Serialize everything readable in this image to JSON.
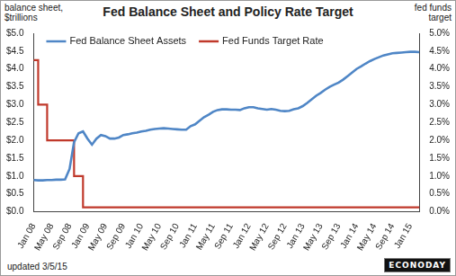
{
  "chart_data": {
    "type": "line",
    "title": "Fed Balance Sheet and Policy Rate Target",
    "ylabel": "balance sheet,\n$trillions",
    "y2label": "fed funds\ntarget",
    "annotations": [
      "updated 3/5/15",
      "ECONODAY"
    ],
    "categories": [
      "Jan 08",
      null,
      null,
      null,
      "May 08",
      null,
      null,
      null,
      "Sep 08",
      null,
      null,
      null,
      "Jan 09",
      null,
      null,
      null,
      "May 09",
      null,
      null,
      null,
      "Sep 09",
      null,
      null,
      null,
      "Jan 10",
      null,
      null,
      null,
      "May 10",
      null,
      null,
      null,
      "Sep 10",
      null,
      null,
      null,
      "Jan 11",
      null,
      null,
      null,
      "May 11",
      null,
      null,
      null,
      "Sep 11",
      null,
      null,
      null,
      "Jan 12",
      null,
      null,
      null,
      "May 12",
      null,
      null,
      null,
      "Sep 12",
      null,
      null,
      null,
      "Jan 13",
      null,
      null,
      null,
      "May 13",
      null,
      null,
      null,
      "Sep 13",
      null,
      null,
      null,
      "Jan 14",
      null,
      null,
      null,
      "May 14",
      null,
      null,
      null,
      "Sep 14",
      null,
      null,
      null,
      "Jan 15",
      null,
      null
    ],
    "series": [
      {
        "name": "Fed Balance Sheet Assets",
        "color": "#4f86c6",
        "line_style": "solid",
        "values": [
          0.89,
          0.88,
          0.88,
          0.89,
          0.89,
          0.9,
          0.9,
          0.91,
          1.2,
          1.95,
          2.2,
          2.25,
          2.05,
          1.88,
          2.05,
          2.15,
          2.12,
          2.05,
          2.05,
          2.08,
          2.15,
          2.17,
          2.2,
          2.22,
          2.25,
          2.27,
          2.3,
          2.32,
          2.33,
          2.34,
          2.33,
          2.32,
          2.31,
          2.3,
          2.3,
          2.4,
          2.45,
          2.55,
          2.65,
          2.72,
          2.8,
          2.85,
          2.87,
          2.87,
          2.86,
          2.86,
          2.85,
          2.9,
          2.93,
          2.93,
          2.9,
          2.88,
          2.86,
          2.88,
          2.86,
          2.83,
          2.82,
          2.83,
          2.87,
          2.9,
          2.96,
          3.05,
          3.15,
          3.25,
          3.33,
          3.42,
          3.5,
          3.56,
          3.62,
          3.7,
          3.8,
          3.9,
          4.0,
          4.07,
          4.15,
          4.22,
          4.28,
          4.33,
          4.38,
          4.41,
          4.44,
          4.45,
          4.46,
          4.47,
          4.48,
          4.48,
          4.47
        ]
      },
      {
        "name": "Fed Funds Target Rate",
        "color": "#c0392b",
        "line_style": "stepped",
        "axis": "y2",
        "values": [
          4.25,
          3.0,
          3.0,
          2.0,
          2.0,
          2.0,
          2.0,
          2.0,
          2.0,
          1.0,
          1.0,
          0.125,
          0.125,
          0.125,
          0.125,
          0.125,
          0.125,
          0.125,
          0.125,
          0.125,
          0.125,
          0.125,
          0.125,
          0.125,
          0.125,
          0.125,
          0.125,
          0.125,
          0.125,
          0.125,
          0.125,
          0.125,
          0.125,
          0.125,
          0.125,
          0.125,
          0.125,
          0.125,
          0.125,
          0.125,
          0.125,
          0.125,
          0.125,
          0.125,
          0.125,
          0.125,
          0.125,
          0.125,
          0.125,
          0.125,
          0.125,
          0.125,
          0.125,
          0.125,
          0.125,
          0.125,
          0.125,
          0.125,
          0.125,
          0.125,
          0.125,
          0.125,
          0.125,
          0.125,
          0.125,
          0.125,
          0.125,
          0.125,
          0.125,
          0.125,
          0.125,
          0.125,
          0.125,
          0.125,
          0.125,
          0.125,
          0.125,
          0.125,
          0.125,
          0.125,
          0.125,
          0.125,
          0.125,
          0.125,
          0.125,
          0.125,
          0.125
        ]
      }
    ],
    "ylim": [
      0,
      5
    ],
    "yticks": [
      {
        "value": 0,
        "label": "$0.0"
      },
      {
        "value": 0.5,
        "label": "$0.5"
      },
      {
        "value": 1,
        "label": "$1.0"
      },
      {
        "value": 1.5,
        "label": "$1.5"
      },
      {
        "value": 2,
        "label": "$2.0"
      },
      {
        "value": 2.5,
        "label": "$2.5"
      },
      {
        "value": 3,
        "label": "$3.0"
      },
      {
        "value": 3.5,
        "label": "$3.5"
      },
      {
        "value": 4,
        "label": "$4.0"
      },
      {
        "value": 4.5,
        "label": "$4.5"
      },
      {
        "value": 5,
        "label": "$5.0"
      }
    ],
    "y2lim": [
      0,
      5
    ],
    "y2ticks": [
      {
        "value": 0,
        "label": "0.0%"
      },
      {
        "value": 0.5,
        "label": "0.5%"
      },
      {
        "value": 1,
        "label": "1.0%"
      },
      {
        "value": 1.5,
        "label": "1.5%"
      },
      {
        "value": 2,
        "label": "2.0%"
      },
      {
        "value": 2.5,
        "label": "2.5%"
      },
      {
        "value": 3,
        "label": "3.0%"
      },
      {
        "value": 3.5,
        "label": "3.5%"
      },
      {
        "value": 4,
        "label": "4.0%"
      },
      {
        "value": 4.5,
        "label": "4.5%"
      },
      {
        "value": 5,
        "label": "5.0%"
      }
    ],
    "grid": false,
    "legend": "top-left"
  }
}
